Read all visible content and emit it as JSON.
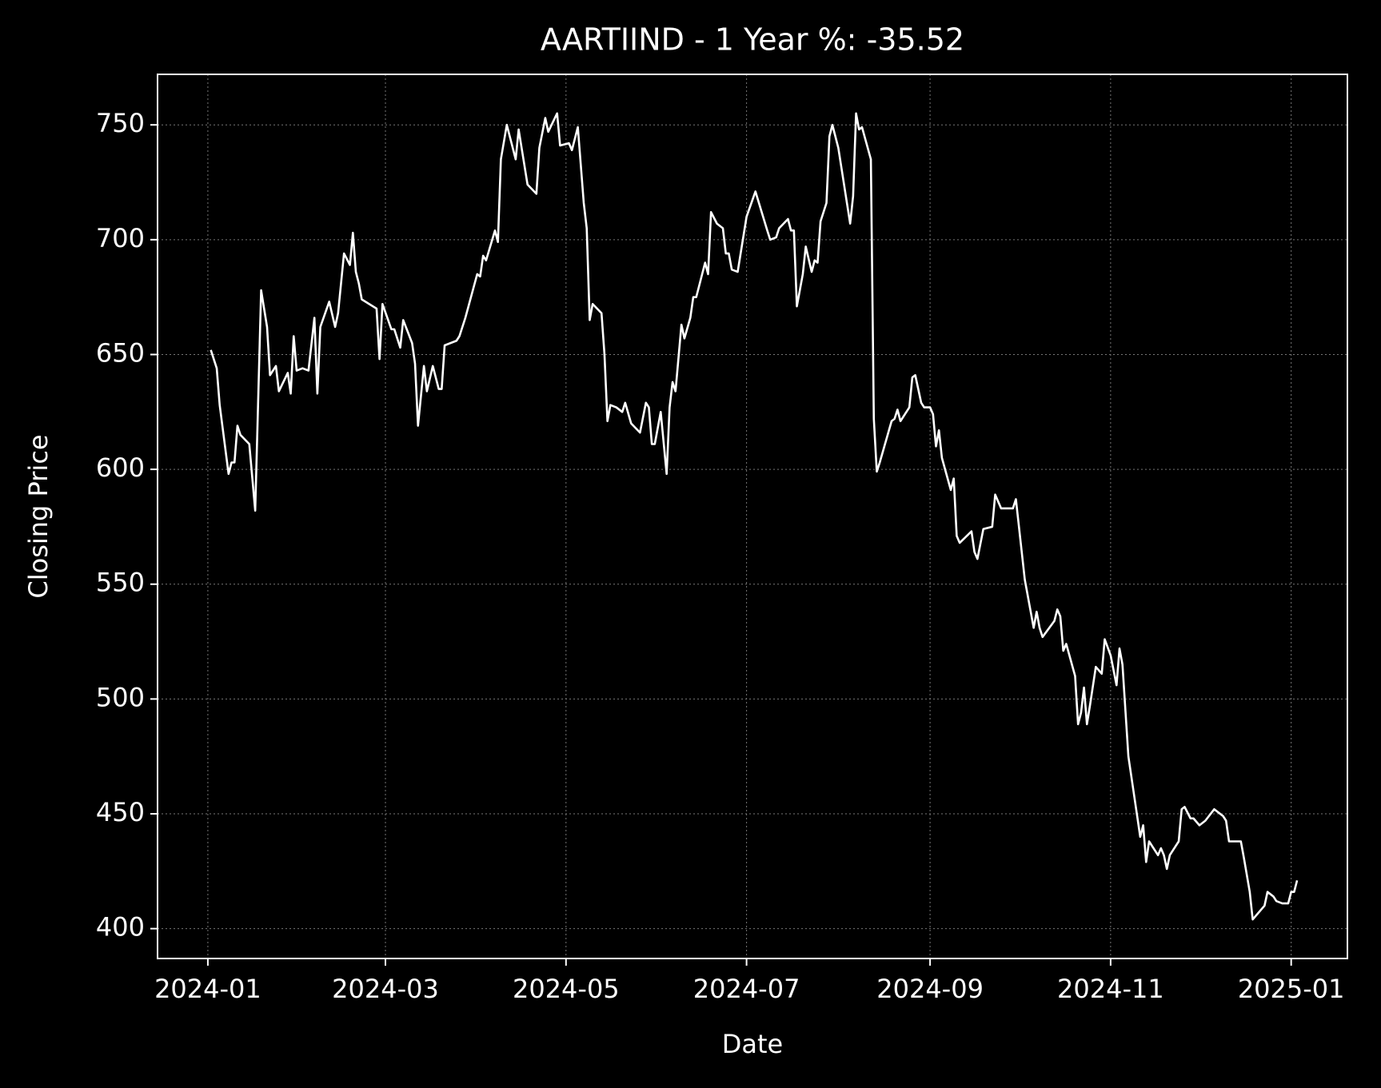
{
  "chart_data": {
    "type": "line",
    "title": "AARTIIND - 1 Year %: -35.52",
    "x_label": "Date",
    "y_label": "Closing Price",
    "x": [
      "2024-01-02",
      "2024-01-04",
      "2024-01-05",
      "2024-01-08",
      "2024-01-09",
      "2024-01-10",
      "2024-01-11",
      "2024-01-12",
      "2024-01-15",
      "2024-01-17",
      "2024-01-19",
      "2024-01-21",
      "2024-01-22",
      "2024-01-24",
      "2024-01-25",
      "2024-01-28",
      "2024-01-29",
      "2024-01-30",
      "2024-01-31",
      "2024-02-02",
      "2024-02-04",
      "2024-02-06",
      "2024-02-07",
      "2024-02-08",
      "2024-02-11",
      "2024-02-13",
      "2024-02-14",
      "2024-02-16",
      "2024-02-18",
      "2024-02-19",
      "2024-02-20",
      "2024-02-21",
      "2024-02-22",
      "2024-02-27",
      "2024-02-28",
      "2024-02-29",
      "2024-03-03",
      "2024-03-04",
      "2024-03-06",
      "2024-03-07",
      "2024-03-10",
      "2024-03-11",
      "2024-03-12",
      "2024-03-14",
      "2024-03-15",
      "2024-03-17",
      "2024-03-19",
      "2024-03-20",
      "2024-03-21",
      "2024-03-25",
      "2024-03-26",
      "2024-03-28",
      "2024-04-01",
      "2024-04-02",
      "2024-04-03",
      "2024-04-04",
      "2024-04-07",
      "2024-04-08",
      "2024-04-09",
      "2024-04-11",
      "2024-04-14",
      "2024-04-15",
      "2024-04-18",
      "2024-04-21",
      "2024-04-22",
      "2024-04-24",
      "2024-04-25",
      "2024-04-28",
      "2024-04-29",
      "2024-05-02",
      "2024-05-03",
      "2024-05-05",
      "2024-05-07",
      "2024-05-08",
      "2024-05-09",
      "2024-05-10",
      "2024-05-13",
      "2024-05-14",
      "2024-05-15",
      "2024-05-16",
      "2024-05-18",
      "2024-05-20",
      "2024-05-21",
      "2024-05-23",
      "2024-05-26",
      "2024-05-28",
      "2024-05-29",
      "2024-05-30",
      "2024-05-31",
      "2024-06-02",
      "2024-06-04",
      "2024-06-05",
      "2024-06-06",
      "2024-06-07",
      "2024-06-09",
      "2024-06-10",
      "2024-06-12",
      "2024-06-13",
      "2024-06-14",
      "2024-06-17",
      "2024-06-18",
      "2024-06-19",
      "2024-06-21",
      "2024-06-23",
      "2024-06-24",
      "2024-06-25",
      "2024-06-26",
      "2024-06-28",
      "2024-07-01",
      "2024-07-04",
      "2024-07-08",
      "2024-07-09",
      "2024-07-11",
      "2024-07-12",
      "2024-07-15",
      "2024-07-16",
      "2024-07-17",
      "2024-07-18",
      "2024-07-20",
      "2024-07-21",
      "2024-07-23",
      "2024-07-24",
      "2024-07-25",
      "2024-07-26",
      "2024-07-28",
      "2024-07-29",
      "2024-07-30",
      "2024-08-01",
      "2024-08-05",
      "2024-08-06",
      "2024-08-07",
      "2024-08-08",
      "2024-08-09",
      "2024-08-12",
      "2024-08-13",
      "2024-08-14",
      "2024-08-15",
      "2024-08-19",
      "2024-08-20",
      "2024-08-21",
      "2024-08-22",
      "2024-08-25",
      "2024-08-26",
      "2024-08-27",
      "2024-08-29",
      "2024-08-30",
      "2024-09-01",
      "2024-09-02",
      "2024-09-03",
      "2024-09-04",
      "2024-09-05",
      "2024-09-08",
      "2024-09-09",
      "2024-09-10",
      "2024-09-11",
      "2024-09-15",
      "2024-09-16",
      "2024-09-17",
      "2024-09-19",
      "2024-09-22",
      "2024-09-23",
      "2024-09-25",
      "2024-09-27",
      "2024-09-29",
      "2024-09-30",
      "2024-10-03",
      "2024-10-06",
      "2024-10-07",
      "2024-10-08",
      "2024-10-09",
      "2024-10-13",
      "2024-10-14",
      "2024-10-15",
      "2024-10-16",
      "2024-10-17",
      "2024-10-20",
      "2024-10-21",
      "2024-10-22",
      "2024-10-23",
      "2024-10-24",
      "2024-10-25",
      "2024-10-27",
      "2024-10-29",
      "2024-10-30",
      "2024-11-01",
      "2024-11-03",
      "2024-11-04",
      "2024-11-05",
      "2024-11-07",
      "2024-11-11",
      "2024-11-12",
      "2024-11-13",
      "2024-11-14",
      "2024-11-17",
      "2024-11-18",
      "2024-11-19",
      "2024-11-20",
      "2024-11-21",
      "2024-11-24",
      "2024-11-25",
      "2024-11-26",
      "2024-11-28",
      "2024-11-29",
      "2024-12-01",
      "2024-12-03",
      "2024-12-06",
      "2024-12-09",
      "2024-12-10",
      "2024-12-11",
      "2024-12-15",
      "2024-12-16",
      "2024-12-18",
      "2024-12-19",
      "2024-12-23",
      "2024-12-24",
      "2024-12-26",
      "2024-12-27",
      "2024-12-29",
      "2024-12-31",
      "2025-01-01",
      "2025-01-02",
      "2025-01-03"
    ],
    "series": [
      {
        "name": "Closing Price",
        "color": "#ffffff",
        "values": [
          652,
          644,
          628,
          598,
          603,
          603,
          619,
          615,
          611,
          582,
          678,
          662,
          641,
          645,
          634,
          642,
          633,
          658,
          643,
          644,
          643,
          666,
          633,
          662,
          673,
          662,
          668,
          694,
          689,
          703,
          686,
          681,
          674,
          670,
          648,
          672,
          661,
          661,
          653,
          665,
          655,
          646,
          619,
          645,
          634,
          645,
          635,
          635,
          654,
          656,
          658,
          666,
          685,
          684,
          693,
          691,
          704,
          699,
          735,
          750,
          735,
          748,
          724,
          720,
          740,
          753,
          747,
          755,
          741,
          742,
          739,
          749,
          716,
          705,
          665,
          672,
          668,
          650,
          621,
          628,
          627,
          625,
          629,
          620,
          616,
          629,
          627,
          611,
          611,
          625,
          598,
          627,
          638,
          634,
          663,
          657,
          666,
          675,
          675,
          690,
          685,
          712,
          707,
          705,
          694,
          694,
          687,
          686,
          710,
          721,
          704,
          700,
          701,
          705,
          709,
          704,
          704,
          671,
          685,
          697,
          686,
          691,
          690,
          708,
          716,
          745,
          750,
          740,
          707,
          719,
          755,
          748,
          749,
          735,
          622,
          599,
          603,
          621,
          622,
          626,
          621,
          627,
          640,
          641,
          629,
          627,
          627,
          624,
          610,
          617,
          605,
          591,
          596,
          571,
          568,
          573,
          564,
          561,
          574,
          575,
          589,
          583,
          583,
          583,
          587,
          552,
          531,
          538,
          531,
          527,
          534,
          539,
          536,
          521,
          524,
          510,
          489,
          494,
          505,
          489,
          497,
          514,
          511,
          526,
          519,
          506,
          522,
          515,
          475,
          440,
          445,
          429,
          438,
          432,
          435,
          432,
          426,
          432,
          438,
          452,
          453,
          448,
          448,
          445,
          447,
          452,
          449,
          447,
          438,
          438,
          431,
          416,
          404,
          410,
          416,
          414,
          412,
          411,
          411,
          416,
          416,
          421
        ]
      }
    ],
    "xlim": [
      "2023-12-15",
      "2025-01-20"
    ],
    "xticks": [
      "2024-01",
      "2024-03",
      "2024-05",
      "2024-07",
      "2024-09",
      "2024-11",
      "2025-01"
    ],
    "ylim": [
      387,
      772
    ],
    "yticks": [
      400,
      450,
      500,
      550,
      600,
      650,
      700,
      750
    ],
    "grid": true
  }
}
